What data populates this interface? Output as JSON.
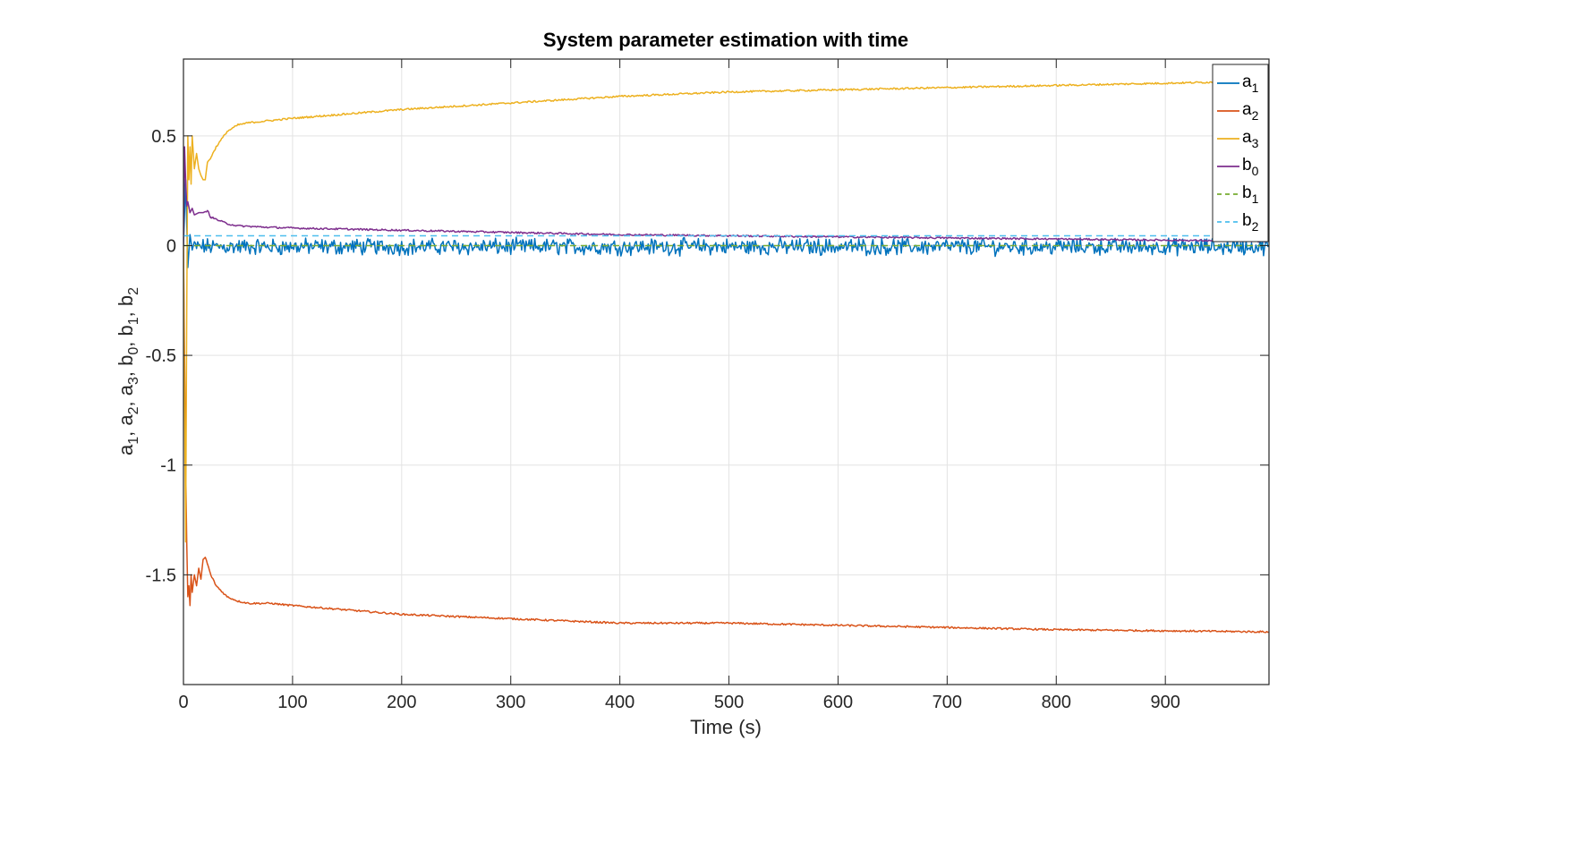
{
  "chart_data": {
    "type": "line",
    "title": "System parameter estimation with time",
    "xlabel": "Time (s)",
    "ylabel": "a1, a2, a3, b0, b1, b2",
    "ylabel_parts": [
      {
        "base": "a",
        "sub": "1"
      },
      {
        "base": "a",
        "sub": "2"
      },
      {
        "base": "a",
        "sub": "3"
      },
      {
        "base": "b",
        "sub": "0"
      },
      {
        "base": "b",
        "sub": "1"
      },
      {
        "base": "b",
        "sub": "2"
      }
    ],
    "xlim": [
      0,
      995
    ],
    "ylim": [
      -2,
      0.85
    ],
    "xticks": [
      0,
      100,
      200,
      300,
      400,
      500,
      600,
      700,
      800,
      900
    ],
    "xtick_labels": [
      "0",
      "100",
      "200",
      "300",
      "400",
      "500",
      "600",
      "700",
      "800",
      "900"
    ],
    "yticks": [
      0.5,
      0,
      -0.5,
      -1,
      -1.5
    ],
    "ytick_labels": [
      "0.5",
      "0",
      "-0.5",
      "-1",
      "-1.5"
    ],
    "grid": true,
    "legend_position": "top-right",
    "series": [
      {
        "name": "a1",
        "label": "a",
        "sub": "1",
        "color": "#0072BD",
        "style": "solid",
        "kind": "noise",
        "mean": -0.005,
        "noise_amplitude": 0.03,
        "x": [
          0,
          2,
          4,
          6,
          8,
          995
        ],
        "y": [
          0.0,
          0.3,
          -0.1,
          0.05,
          -0.02,
          -0.01
        ]
      },
      {
        "name": "a2",
        "label": "a",
        "sub": "2",
        "color": "#D95319",
        "style": "solid",
        "kind": "trend",
        "x": [
          0,
          1,
          2,
          3,
          4,
          5,
          6,
          7,
          8,
          10,
          12,
          14,
          16,
          18,
          20,
          22,
          25,
          30,
          40,
          50,
          60,
          80,
          100,
          150,
          200,
          300,
          400,
          500,
          600,
          700,
          800,
          900,
          995
        ],
        "y": [
          0.0,
          -0.5,
          -1.0,
          -1.35,
          -1.6,
          -1.55,
          -1.64,
          -1.5,
          -1.58,
          -1.5,
          -1.55,
          -1.47,
          -1.52,
          -1.43,
          -1.42,
          -1.45,
          -1.5,
          -1.55,
          -1.6,
          -1.62,
          -1.63,
          -1.63,
          -1.64,
          -1.66,
          -1.68,
          -1.7,
          -1.72,
          -1.72,
          -1.73,
          -1.74,
          -1.75,
          -1.755,
          -1.76
        ]
      },
      {
        "name": "a3",
        "label": "a",
        "sub": "3",
        "color": "#EDB120",
        "style": "solid",
        "kind": "trend",
        "x": [
          0,
          1,
          2,
          3,
          4,
          5,
          6,
          7,
          8,
          10,
          12,
          14,
          16,
          18,
          20,
          22,
          25,
          30,
          40,
          50,
          60,
          80,
          100,
          150,
          200,
          300,
          400,
          500,
          600,
          700,
          800,
          900,
          995
        ],
        "y": [
          0.0,
          -0.7,
          -1.35,
          -0.3,
          0.5,
          0.3,
          0.45,
          0.28,
          0.5,
          0.35,
          0.42,
          0.35,
          0.32,
          0.3,
          0.3,
          0.38,
          0.4,
          0.45,
          0.52,
          0.55,
          0.56,
          0.57,
          0.58,
          0.6,
          0.62,
          0.65,
          0.68,
          0.7,
          0.71,
          0.72,
          0.73,
          0.74,
          0.75
        ]
      },
      {
        "name": "b0",
        "label": "b",
        "sub": "0",
        "color": "#7E2F8E",
        "style": "solid",
        "kind": "trend",
        "x": [
          0,
          1,
          2,
          3,
          4,
          6,
          8,
          10,
          14,
          18,
          22,
          25,
          30,
          40,
          50,
          70,
          100,
          150,
          200,
          300,
          400,
          500,
          600,
          700,
          800,
          900,
          995
        ],
        "y": [
          0.0,
          0.45,
          0.3,
          0.18,
          0.2,
          0.15,
          0.17,
          0.14,
          0.15,
          0.15,
          0.16,
          0.13,
          0.12,
          0.1,
          0.09,
          0.085,
          0.08,
          0.075,
          0.07,
          0.06,
          0.05,
          0.045,
          0.04,
          0.035,
          0.03,
          0.025,
          0.02
        ]
      },
      {
        "name": "b1",
        "label": "b",
        "sub": "1",
        "color": "#77AC30",
        "style": "dashed",
        "kind": "trend",
        "x": [
          0,
          995
        ],
        "y": [
          0.0,
          0.0
        ]
      },
      {
        "name": "b2",
        "label": "b",
        "sub": "2",
        "color": "#4DBEEE",
        "style": "dashed",
        "kind": "trend",
        "x": [
          0,
          995
        ],
        "y": [
          0.045,
          0.045
        ]
      }
    ]
  }
}
